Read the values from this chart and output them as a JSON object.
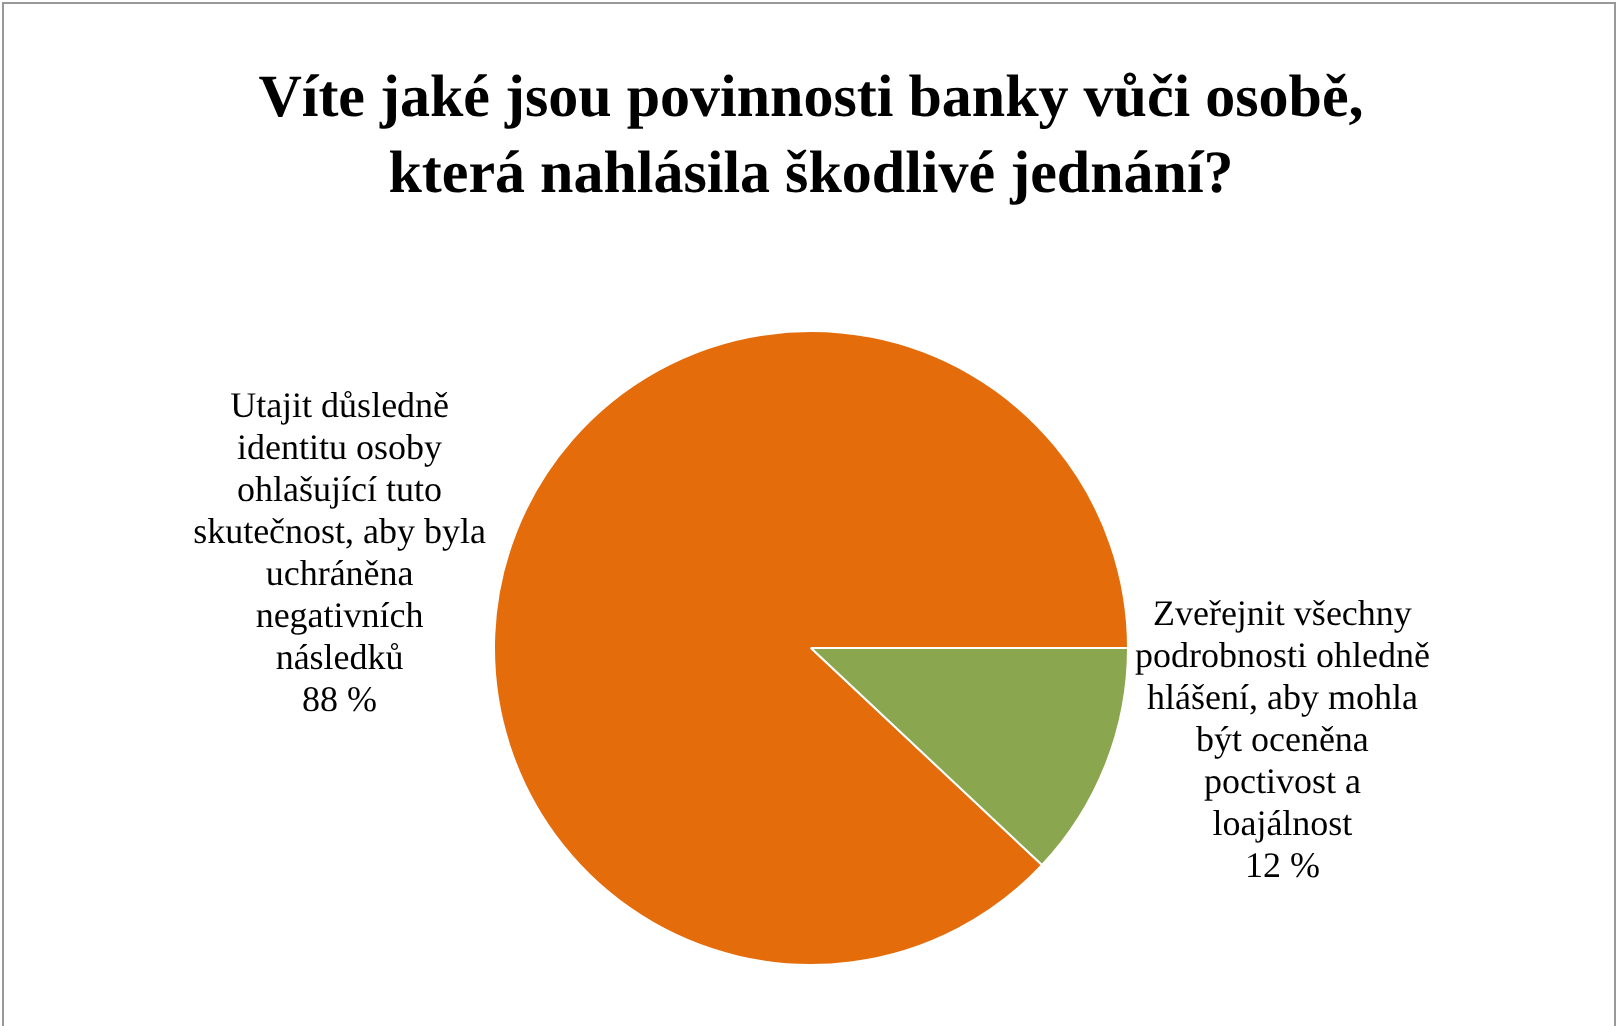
{
  "chart_data": {
    "type": "pie",
    "title": "Víte jaké jsou povinnosti banky vůči osobě, která nahlásila škodlivé jednání?",
    "categories": [
      "Utajit důsledně identitu osoby ohlašující tuto skutečnost, aby byla uchráněna negativních následků",
      "Zveřejnit všechny podrobnosti ohledně hlášení, aby mohla být oceněna poctivost a loajálnost"
    ],
    "values": [
      88,
      12
    ],
    "value_labels": [
      "88 %",
      "12 %"
    ],
    "colors": [
      "#e46c0a",
      "#8aa64e"
    ],
    "legend": false
  }
}
